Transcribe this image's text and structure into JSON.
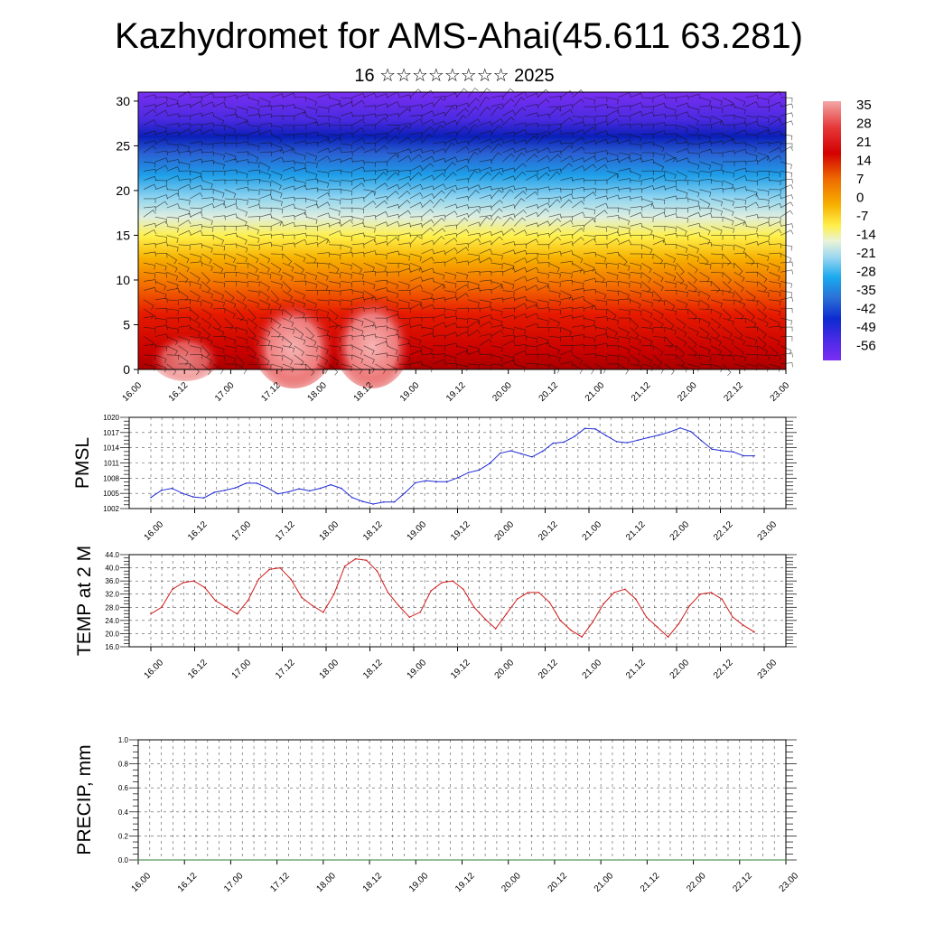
{
  "header": {
    "title": "Kazhydromet for AMS-Ahai(45.611 63.281)",
    "subtitle": "16 ☆☆☆☆☆☆☆☆ 2025"
  },
  "colors": {
    "pmsl_line": "#1f2bd6",
    "temp_line": "#d11a1a",
    "precip_line": "#2e7d32",
    "wind_barbs": "#111111",
    "colorscale": [
      "#f4a7a7",
      "#e63a3a",
      "#d30000",
      "#e85a00",
      "#f5a400",
      "#fff04a",
      "#e9f3d8",
      "#7fd3f2",
      "#1aa9ee",
      "#2a6fd6",
      "#0d2bd0",
      "#5a26e6",
      "#7a2ef2"
    ]
  },
  "chart_data": [
    {
      "type": "heatmap",
      "name": "upper-air",
      "title": "",
      "xlabel": "",
      "ylabel": "",
      "x_tick_labels": [
        "16.00",
        "16.12",
        "17.00",
        "17.12",
        "18.00",
        "18.12",
        "19.00",
        "19.12",
        "20.00",
        "20.12",
        "21.00",
        "21.12",
        "22.00",
        "22.12",
        "23.00"
      ],
      "y_tick_labels": [
        "0",
        "5",
        "10",
        "15",
        "20",
        "25",
        "30"
      ],
      "ylim": [
        0,
        31
      ],
      "colorbar_labels": [
        "35",
        "28",
        "21",
        "14",
        "7",
        "0",
        "-7",
        "-14",
        "-21",
        "-28",
        "-35",
        "-42",
        "-49",
        "-56"
      ],
      "overlay": "wind barbs"
    },
    {
      "type": "line",
      "name": "PMSL",
      "ylabel": "PMSL",
      "ylim": [
        1002,
        1020
      ],
      "y_tick_labels": [
        "1002",
        "1005",
        "1008",
        "1011",
        "1014",
        "1017",
        "1020"
      ],
      "x_tick_labels": [
        "16.00",
        "16.12",
        "17.00",
        "17.12",
        "18.00",
        "18.12",
        "19.00",
        "19.12",
        "20.00",
        "20.12",
        "21.00",
        "21.12",
        "22.00",
        "22.12",
        "23.00"
      ],
      "grid": true,
      "values": [
        1004.2,
        1005.6,
        1006.0,
        1005.0,
        1004.3,
        1004.1,
        1005.2,
        1005.6,
        1006.1,
        1007.0,
        1007.0,
        1006.1,
        1004.9,
        1005.3,
        1005.9,
        1005.5,
        1006.0,
        1006.7,
        1006.0,
        1004.2,
        1003.4,
        1002.9,
        1003.3,
        1003.3,
        1005.1,
        1007.1,
        1007.5,
        1007.3,
        1007.3,
        1008.1,
        1009.1,
        1009.6,
        1010.9,
        1012.9,
        1013.4,
        1012.8,
        1012.2,
        1013.3,
        1014.9,
        1015.1,
        1016.2,
        1017.8,
        1017.7,
        1016.4,
        1015.2,
        1015.0,
        1015.5,
        1016.0,
        1016.5,
        1017.1,
        1017.9,
        1017.2,
        1015.4,
        1013.7,
        1013.4,
        1013.2,
        1012.4,
        1012.4
      ]
    },
    {
      "type": "line",
      "name": "TEMP at 2 M",
      "ylabel": "TEMP at 2 M",
      "ylim": [
        16,
        44
      ],
      "y_tick_labels": [
        "16.0",
        "20.0",
        "24.0",
        "28.0",
        "32.0",
        "36.0",
        "40.0",
        "44.0"
      ],
      "x_tick_labels": [
        "16.00",
        "16.12",
        "17.00",
        "17.12",
        "18.00",
        "18.12",
        "19.00",
        "19.12",
        "20.00",
        "20.12",
        "21.00",
        "21.12",
        "22.00",
        "22.12",
        "23.00"
      ],
      "grid": true,
      "values": [
        26,
        28,
        33.5,
        35.5,
        36,
        34,
        30,
        28,
        26,
        30,
        36.5,
        39.5,
        40,
        36.5,
        31,
        28.5,
        26.5,
        32,
        40.5,
        42.7,
        42.3,
        39,
        32.5,
        28.5,
        25,
        26.5,
        33,
        35.5,
        36,
        33.5,
        28,
        24.5,
        21.5,
        26,
        30.5,
        32.5,
        32.5,
        29.5,
        24,
        21,
        19,
        23.5,
        29,
        32.5,
        33.5,
        30.5,
        25,
        22,
        19,
        23,
        28.5,
        32,
        32.5,
        30.5,
        25,
        22.5,
        20.5
      ]
    },
    {
      "type": "line",
      "name": "PRECIP, mm",
      "ylabel": "PRECIP, mm",
      "ylim": [
        0,
        1
      ],
      "y_tick_labels": [
        "0.0",
        "0.2",
        "0.4",
        "0.6",
        "0.8",
        "1.0"
      ],
      "x_tick_labels": [
        "16.00",
        "16.12",
        "17.00",
        "17.12",
        "18.00",
        "18.12",
        "19.00",
        "19.12",
        "20.00",
        "20.12",
        "21.00",
        "21.12",
        "22.00",
        "22.12",
        "23.00"
      ],
      "grid": true,
      "values": [
        0,
        0,
        0,
        0,
        0,
        0,
        0,
        0,
        0,
        0,
        0,
        0,
        0,
        0,
        0
      ]
    }
  ]
}
